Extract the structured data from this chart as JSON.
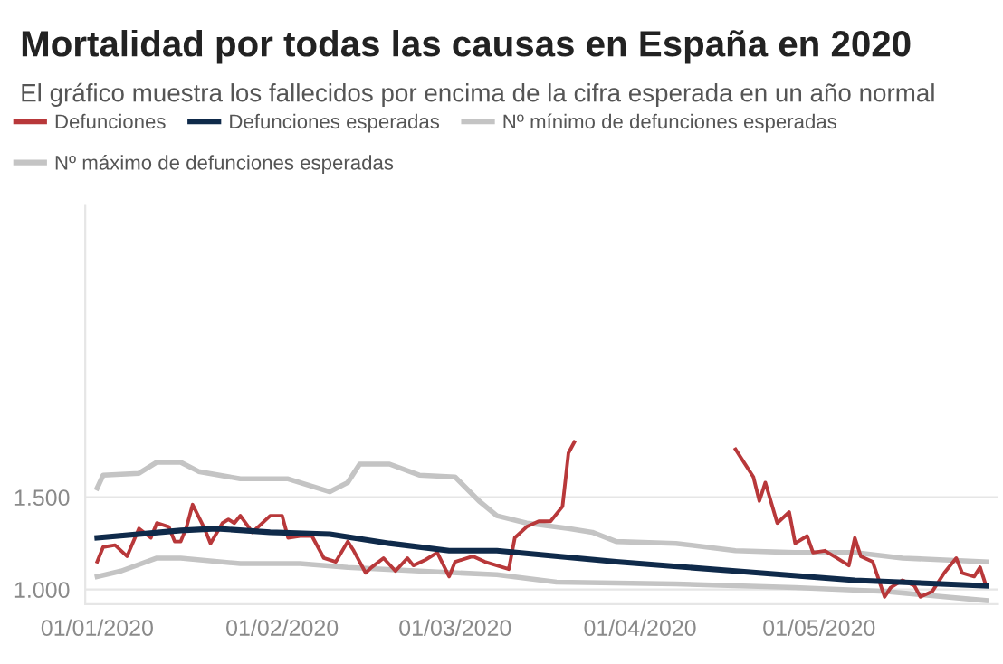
{
  "chart_data": {
    "type": "line",
    "title": "Mortalidad por todas las causas en España en 2020",
    "subtitle": "El gráfico muestra los fallecidos por encima de la cifra esperada en un año normal",
    "series": [
      {
        "name": "Defunciones",
        "color": "#b8383a",
        "x": [
          "2020-01-01",
          "2020-01-02",
          "2020-01-04",
          "2020-01-06",
          "2020-01-08",
          "2020-01-10",
          "2020-01-11",
          "2020-01-13",
          "2020-01-14",
          "2020-01-15",
          "2020-01-16",
          "2020-01-17",
          "2020-01-19",
          "2020-01-20",
          "2020-01-22",
          "2020-01-23",
          "2020-01-24",
          "2020-01-25",
          "2020-01-27",
          "2020-01-28",
          "2020-01-30",
          "2020-02-01",
          "2020-02-02",
          "2020-02-04",
          "2020-02-06",
          "2020-02-08",
          "2020-02-10",
          "2020-02-12",
          "2020-02-13",
          "2020-02-15",
          "2020-02-16",
          "2020-02-18",
          "2020-02-20",
          "2020-02-22",
          "2020-02-23",
          "2020-02-25",
          "2020-02-27",
          "2020-02-29",
          "2020-03-01",
          "2020-03-04",
          "2020-03-06",
          "2020-03-10",
          "2020-03-11",
          "2020-03-13",
          "2020-03-15",
          "2020-03-17",
          "2020-03-19",
          "2020-03-20",
          "2020-03-21",
          "2020-03-22",
          "2020-04-17",
          "2020-04-18",
          "2020-04-20",
          "2020-04-21",
          "2020-04-22",
          "2020-04-24",
          "2020-04-26",
          "2020-04-27",
          "2020-04-29",
          "2020-04-30",
          "2020-05-02",
          "2020-05-04",
          "2020-05-06",
          "2020-05-07",
          "2020-05-08",
          "2020-05-10",
          "2020-05-12",
          "2020-05-13",
          "2020-05-15",
          "2020-05-17",
          "2020-05-18",
          "2020-05-20",
          "2020-05-22",
          "2020-05-24",
          "2020-05-25",
          "2020-05-27",
          "2020-05-28",
          "2020-05-29"
        ],
        "values": [
          1150,
          1230,
          1240,
          1180,
          1330,
          1280,
          1360,
          1340,
          1260,
          1260,
          1340,
          1460,
          1330,
          1250,
          1360,
          1380,
          1360,
          1400,
          1310,
          1340,
          1400,
          1400,
          1280,
          1290,
          1290,
          1170,
          1150,
          1260,
          1210,
          1090,
          1120,
          1170,
          1100,
          1170,
          1130,
          1160,
          1200,
          1070,
          1150,
          1180,
          1150,
          1110,
          1280,
          1340,
          1370,
          1370,
          1450,
          1740,
          1800,
          null,
          1760,
          1710,
          1610,
          1480,
          1580,
          1360,
          1420,
          1250,
          1290,
          1200,
          1210,
          1170,
          1130,
          1280,
          1180,
          1150,
          960,
          1010,
          1050,
          1020,
          960,
          990,
          1090,
          1170,
          1090,
          1070,
          1120,
          1020
        ]
      },
      {
        "name": "Defunciones esperadas",
        "color": "#0f2a4a",
        "x": [
          "2020-01-01",
          "2020-01-15",
          "2020-01-21",
          "2020-01-30",
          "2020-02-09",
          "2020-02-19",
          "2020-02-29",
          "2020-03-08",
          "2020-03-28",
          "2020-04-17",
          "2020-05-07",
          "2020-05-29"
        ],
        "values": [
          1280,
          1320,
          1330,
          1310,
          1300,
          1250,
          1210,
          1210,
          1150,
          1100,
          1050,
          1020
        ]
      },
      {
        "name": "Nº mínimo de defunciones esperadas",
        "color": "#c4c4c4",
        "x": [
          "2020-01-01",
          "2020-01-05",
          "2020-01-11",
          "2020-01-15",
          "2020-01-25",
          "2020-02-04",
          "2020-02-12",
          "2020-02-24",
          "2020-03-08",
          "2020-03-18",
          "2020-04-07",
          "2020-04-17",
          "2020-04-27",
          "2020-05-12",
          "2020-05-29"
        ],
        "values": [
          1070,
          1100,
          1170,
          1170,
          1140,
          1140,
          1120,
          1100,
          1080,
          1040,
          1030,
          1020,
          1010,
          990,
          940
        ]
      },
      {
        "name": "Nº máximo de defunciones esperadas",
        "color": "#c4c4c4",
        "x": [
          "2020-01-01",
          "2020-01-02",
          "2020-01-08",
          "2020-01-11",
          "2020-01-15",
          "2020-01-18",
          "2020-01-25",
          "2020-02-02",
          "2020-02-09",
          "2020-02-12",
          "2020-02-14",
          "2020-02-19",
          "2020-02-24",
          "2020-03-01",
          "2020-03-05",
          "2020-03-08",
          "2020-03-13",
          "2020-03-20",
          "2020-03-24",
          "2020-03-28",
          "2020-04-07",
          "2020-04-17",
          "2020-04-27",
          "2020-05-07",
          "2020-05-15",
          "2020-05-29"
        ],
        "values": [
          1550,
          1620,
          1630,
          1690,
          1690,
          1640,
          1600,
          1600,
          1530,
          1580,
          1680,
          1680,
          1620,
          1610,
          1480,
          1400,
          1360,
          1330,
          1310,
          1260,
          1250,
          1210,
          1200,
          1200,
          1170,
          1150
        ]
      }
    ],
    "xlim": [
      "2019-12-30",
      "2020-05-31"
    ],
    "xticks": [
      {
        "value": "2020-01-01",
        "label": "01/01/2020"
      },
      {
        "value": "2020-02-01",
        "label": "01/02/2020"
      },
      {
        "value": "2020-03-01",
        "label": "01/03/2020"
      },
      {
        "value": "2020-04-01",
        "label": "01/04/2020"
      },
      {
        "value": "2020-05-01",
        "label": "01/05/2020"
      }
    ],
    "ylim": [
      920,
      3080
    ],
    "yticks": [
      {
        "value": 1000,
        "label": "1.000"
      },
      {
        "value": 1500,
        "label": "1.500"
      }
    ],
    "grid": "y",
    "legend": "top",
    "marker": "none",
    "line_style": "solid"
  }
}
